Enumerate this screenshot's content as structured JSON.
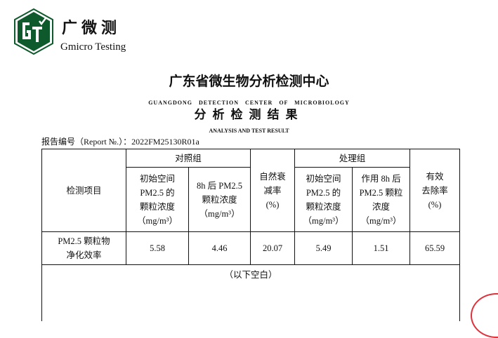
{
  "watermark": "Gmicro Testing",
  "logo": {
    "letters": "GT",
    "color": "#0e5a2c"
  },
  "brand": {
    "cn": "广微测",
    "en": "Gmicro Testing"
  },
  "title_cn": "广东省微生物分析检测中心",
  "title_en": "GUANGDONG DETECTION CENTER OF MICROBIOLOGY",
  "subtitle_cn": "分析检测结果",
  "subtitle_en": "ANALYSIS AND TEST RESULT",
  "report_no": "报告编号（Report №.）：2022FM25130R01a",
  "table": {
    "item_header": "检测项目",
    "control_group": "对照组",
    "treatment_group": "处理组",
    "col_ctrl_init": "初始空间 PM2.5 的 颗粒浓度",
    "col_ctrl_8h": "8h 后 PM2.5 颗粒浓度",
    "col_natural": "自然衰 减率",
    "col_trt_init": "初始空间 PM2.5 的 颗粒浓度",
    "col_trt_8h": "作用 8h 后 PM2.5 颗粒浓度",
    "col_removal": "有效 去除率",
    "unit_conc": "（mg/m³）",
    "unit_pct": "(%)",
    "row": {
      "item": "PM2.5 颗粒物 净化效率",
      "ctrl_init": "5.58",
      "ctrl_8h": "4.46",
      "natural": "20.07",
      "trt_init": "5.49",
      "trt_8h": "1.51",
      "removal": "65.59"
    },
    "blank_note": "（以下空白）"
  },
  "stamp_color": "#e0303a"
}
